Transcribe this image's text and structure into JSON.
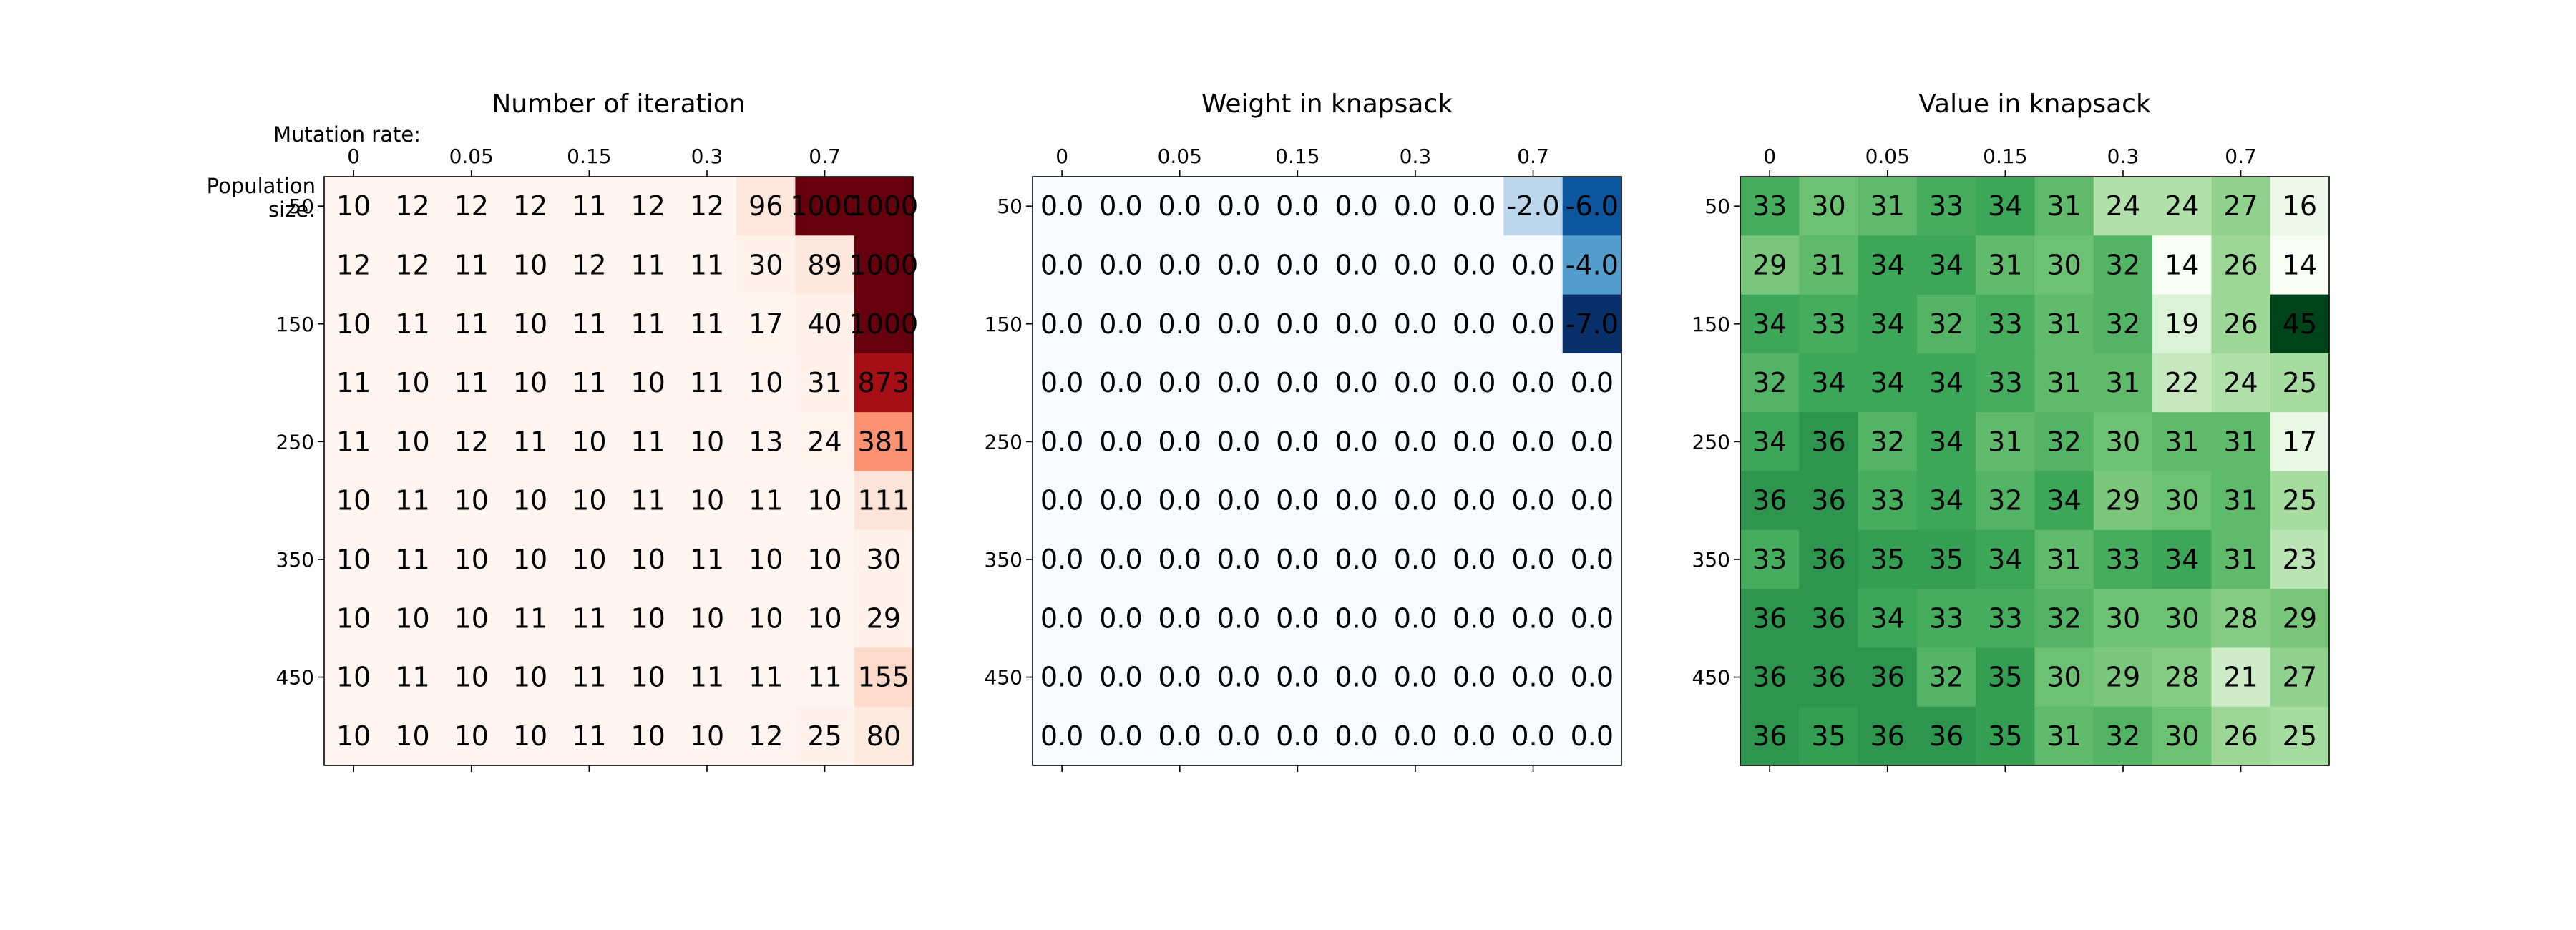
{
  "chart_data": [
    {
      "type": "heatmap",
      "title": "Number of iteration",
      "xlabel": "Mutation rate:",
      "ylabel_lines": [
        "Population",
        "size:"
      ],
      "colormap": "Reds",
      "xtick_labels": [
        "0",
        "0.05",
        "0.15",
        "0.3",
        "0.7"
      ],
      "xtick_indices": [
        0,
        2,
        4,
        6,
        8
      ],
      "ytick_labels": [
        "50",
        "150",
        "250",
        "350",
        "450"
      ],
      "ytick_indices": [
        0,
        2,
        4,
        6,
        8
      ],
      "value_format": "int",
      "values": [
        [
          10,
          12,
          12,
          12,
          11,
          12,
          12,
          96,
          1000,
          1000
        ],
        [
          12,
          12,
          11,
          10,
          12,
          11,
          11,
          30,
          89,
          1000
        ],
        [
          10,
          11,
          11,
          10,
          11,
          11,
          11,
          17,
          40,
          1000
        ],
        [
          11,
          10,
          11,
          10,
          11,
          10,
          11,
          10,
          31,
          873
        ],
        [
          11,
          10,
          12,
          11,
          10,
          11,
          10,
          13,
          24,
          381
        ],
        [
          10,
          11,
          10,
          10,
          10,
          11,
          10,
          11,
          10,
          111
        ],
        [
          10,
          11,
          10,
          10,
          10,
          10,
          11,
          10,
          10,
          30
        ],
        [
          10,
          10,
          10,
          11,
          11,
          10,
          10,
          10,
          10,
          29
        ],
        [
          10,
          11,
          10,
          10,
          11,
          10,
          11,
          11,
          11,
          155
        ],
        [
          10,
          10,
          10,
          10,
          11,
          10,
          10,
          12,
          25,
          80
        ]
      ]
    },
    {
      "type": "heatmap",
      "title": "Weight in knapsack",
      "xlabel": "",
      "ylabel_lines": [],
      "colormap": "Blues_r",
      "xtick_labels": [
        "0",
        "0.05",
        "0.15",
        "0.3",
        "0.7"
      ],
      "xtick_indices": [
        0,
        2,
        4,
        6,
        8
      ],
      "ytick_labels": [
        "50",
        "150",
        "250",
        "350",
        "450"
      ],
      "ytick_indices": [
        0,
        2,
        4,
        6,
        8
      ],
      "value_format": "float1",
      "values": [
        [
          0.0,
          0.0,
          0.0,
          0.0,
          0.0,
          0.0,
          0.0,
          0.0,
          -2.0,
          -6.0
        ],
        [
          0.0,
          0.0,
          0.0,
          0.0,
          0.0,
          0.0,
          0.0,
          0.0,
          0.0,
          -4.0
        ],
        [
          0.0,
          0.0,
          0.0,
          0.0,
          0.0,
          0.0,
          0.0,
          0.0,
          0.0,
          -7.0
        ],
        [
          0.0,
          0.0,
          0.0,
          0.0,
          0.0,
          0.0,
          0.0,
          0.0,
          0.0,
          0.0
        ],
        [
          0.0,
          0.0,
          0.0,
          0.0,
          0.0,
          0.0,
          0.0,
          0.0,
          0.0,
          0.0
        ],
        [
          0.0,
          0.0,
          0.0,
          0.0,
          0.0,
          0.0,
          0.0,
          0.0,
          0.0,
          0.0
        ],
        [
          0.0,
          0.0,
          0.0,
          0.0,
          0.0,
          0.0,
          0.0,
          0.0,
          0.0,
          0.0
        ],
        [
          0.0,
          0.0,
          0.0,
          0.0,
          0.0,
          0.0,
          0.0,
          0.0,
          0.0,
          0.0
        ],
        [
          0.0,
          0.0,
          0.0,
          0.0,
          0.0,
          0.0,
          0.0,
          0.0,
          0.0,
          0.0
        ],
        [
          0.0,
          0.0,
          0.0,
          0.0,
          0.0,
          0.0,
          0.0,
          0.0,
          0.0,
          0.0
        ]
      ]
    },
    {
      "type": "heatmap",
      "title": "Value in knapsack",
      "xlabel": "",
      "ylabel_lines": [],
      "colormap": "Greens",
      "xtick_labels": [
        "0",
        "0.05",
        "0.15",
        "0.3",
        "0.7"
      ],
      "xtick_indices": [
        0,
        2,
        4,
        6,
        8
      ],
      "ytick_labels": [
        "50",
        "150",
        "250",
        "350",
        "450"
      ],
      "ytick_indices": [
        0,
        2,
        4,
        6,
        8
      ],
      "value_format": "int",
      "values": [
        [
          33,
          30,
          31,
          33,
          34,
          31,
          24,
          24,
          27,
          16
        ],
        [
          29,
          31,
          34,
          34,
          31,
          30,
          32,
          14,
          26,
          14
        ],
        [
          34,
          33,
          34,
          32,
          33,
          31,
          32,
          19,
          26,
          45
        ],
        [
          32,
          34,
          34,
          34,
          33,
          31,
          31,
          22,
          24,
          25
        ],
        [
          34,
          36,
          32,
          34,
          31,
          32,
          30,
          31,
          31,
          17
        ],
        [
          36,
          36,
          33,
          34,
          32,
          34,
          29,
          30,
          31,
          25
        ],
        [
          33,
          36,
          35,
          35,
          34,
          31,
          33,
          34,
          31,
          23
        ],
        [
          36,
          36,
          34,
          33,
          33,
          32,
          30,
          30,
          28,
          29
        ],
        [
          36,
          36,
          36,
          32,
          35,
          30,
          29,
          28,
          21,
          27
        ],
        [
          36,
          35,
          36,
          36,
          35,
          31,
          32,
          30,
          26,
          25
        ]
      ]
    }
  ]
}
